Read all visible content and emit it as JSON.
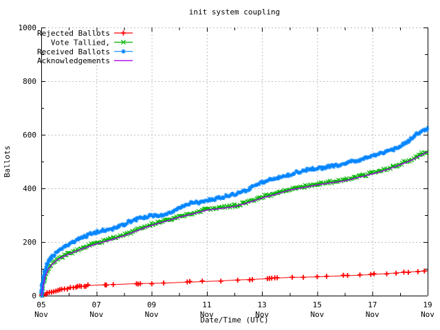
{
  "title": "init system coupling",
  "colors": {
    "background": "#ffffff",
    "axis": "#000000",
    "grid": "#bbbbbb",
    "rejected": "#ff0000",
    "tallied": "#00b400",
    "received": "#0084ff",
    "acknowledgements": "#aa00ee"
  },
  "chart_data": {
    "type": "line",
    "title": "init system coupling",
    "xlabel": "Date/Time (UTC)",
    "ylabel": "Ballots",
    "xlim": [
      5,
      19
    ],
    "ylim": [
      0,
      1000
    ],
    "grid": true,
    "legend_position": "top-left",
    "x_unit": "day of November (UTC)",
    "x_major_ticks": [
      {
        "day": 5,
        "line1": "05",
        "line2": "Nov"
      },
      {
        "day": 7,
        "line1": "07",
        "line2": "Nov"
      },
      {
        "day": 9,
        "line1": "09",
        "line2": "Nov"
      },
      {
        "day": 11,
        "line1": "11",
        "line2": "Nov"
      },
      {
        "day": 13,
        "line1": "13",
        "line2": "Nov"
      },
      {
        "day": 15,
        "line1": "15",
        "line2": "Nov"
      },
      {
        "day": 17,
        "line1": "17",
        "line2": "Nov"
      },
      {
        "day": 19,
        "line1": "19",
        "line2": "Nov"
      }
    ],
    "x_minor_days": [
      6,
      8,
      10,
      12,
      14,
      16,
      18
    ],
    "y_major_ticks": [
      0,
      200,
      400,
      600,
      800,
      1000
    ],
    "y_minor_ticks": [
      100,
      300,
      500,
      700,
      900
    ],
    "x_days": [
      5,
      5.04,
      5.08,
      5.15,
      5.25,
      5.4,
      5.6,
      5.8,
      6,
      6.25,
      6.5,
      6.75,
      7,
      7.25,
      7.5,
      7.75,
      8,
      8.25,
      8.5,
      8.75,
      9,
      9.25,
      9.5,
      9.75,
      10,
      10.25,
      10.5,
      10.75,
      11,
      11.25,
      11.5,
      11.75,
      12,
      12.25,
      12.5,
      12.75,
      13,
      13.25,
      13.5,
      13.75,
      14,
      14.25,
      14.5,
      14.75,
      15,
      15.25,
      15.5,
      15.75,
      16,
      16.25,
      16.5,
      16.75,
      17,
      17.25,
      17.5,
      17.75,
      18,
      18.25,
      18.5,
      18.75,
      19
    ],
    "series": [
      {
        "name": "Rejected Ballots",
        "color": "#ff0000",
        "marker": "plus",
        "band": false,
        "days": [
          5,
          5.1,
          5.25,
          5.4,
          5.6,
          5.8,
          6,
          6.2,
          6.4,
          6.6,
          6.8,
          7,
          7.5,
          8,
          8.5,
          9,
          9.5,
          10,
          10.5,
          11,
          11.5,
          12,
          12.5,
          13,
          13.3,
          13.6,
          14,
          14.5,
          15,
          15.5,
          16,
          16.5,
          17,
          17.5,
          18,
          18.5,
          19
        ],
        "values": [
          0,
          5,
          11,
          15,
          20,
          24,
          28,
          32,
          35,
          37,
          38,
          39,
          41,
          43,
          45,
          46,
          47,
          49,
          51,
          53,
          55,
          58,
          60,
          62,
          64,
          66,
          68,
          69,
          70,
          72,
          74,
          76,
          79,
          82,
          86,
          89,
          93
        ],
        "marker_days": [
          5.02,
          5.08,
          5.15,
          5.22,
          5.3,
          5.38,
          5.45,
          5.52,
          5.6,
          5.68,
          5.75,
          5.85,
          5.95,
          6.05,
          6.15,
          6.25,
          6.3,
          6.38,
          6.45,
          6.55,
          6.62,
          6.7,
          7.3,
          7.35,
          7.62,
          8.45,
          8.5,
          8.58,
          9.0,
          9.45,
          10.3,
          10.38,
          10.85,
          11.5,
          12.1,
          12.55,
          12.65,
          13.2,
          13.28,
          13.35,
          13.45,
          13.55,
          14.1,
          14.5,
          15.0,
          15.35,
          15.95,
          16.1,
          16.55,
          16.95,
          17.05,
          17.5,
          17.85,
          18.15,
          18.3,
          18.65,
          18.9
        ]
      },
      {
        "name": "Vote Tallied,",
        "color": "#00b400",
        "marker": "cross",
        "band": true,
        "values": [
          0,
          20,
          45,
          75,
          100,
          120,
          138,
          148,
          158,
          168,
          178,
          187,
          196,
          203,
          210,
          218,
          226,
          236,
          246,
          256,
          265,
          273,
          280,
          288,
          295,
          302,
          308,
          315,
          322,
          325,
          328,
          331,
          335,
          342,
          350,
          358,
          367,
          374,
          381,
          389,
          397,
          402,
          406,
          411,
          416,
          420,
          424,
          427,
          431,
          437,
          444,
          450,
          457,
          464,
          472,
          481,
          491,
          501,
          512,
          526,
          540
        ]
      },
      {
        "name": "Received Ballots",
        "color": "#0084ff",
        "marker": "star",
        "band": true,
        "values": [
          0,
          30,
          65,
          100,
          125,
          148,
          168,
          180,
          192,
          205,
          218,
          228,
          237,
          243,
          248,
          257,
          267,
          278,
          288,
          292,
          296,
          300,
          303,
          310,
          329,
          338,
          346,
          350,
          354,
          360,
          365,
          371,
          377,
          386,
          397,
          412,
          423,
          430,
          436,
          442,
          449,
          458,
          466,
          470,
          474,
          478,
          482,
          486,
          491,
          498,
          505,
          513,
          521,
          529,
          538,
          546,
          555,
          572,
          595,
          612,
          624
        ]
      },
      {
        "name": "Acknowledgements",
        "color": "#aa00ee",
        "marker": "none",
        "band": false,
        "values": [
          0,
          17,
          42,
          72,
          97,
          117,
          135,
          145,
          155,
          165,
          175,
          184,
          193,
          200,
          207,
          215,
          223,
          233,
          243,
          253,
          262,
          270,
          277,
          285,
          292,
          299,
          305,
          312,
          319,
          322,
          325,
          328,
          332,
          339,
          347,
          355,
          364,
          371,
          378,
          386,
          394,
          399,
          403,
          408,
          413,
          417,
          421,
          424,
          428,
          434,
          441,
          447,
          454,
          461,
          469,
          478,
          488,
          498,
          509,
          523,
          537
        ]
      }
    ]
  }
}
